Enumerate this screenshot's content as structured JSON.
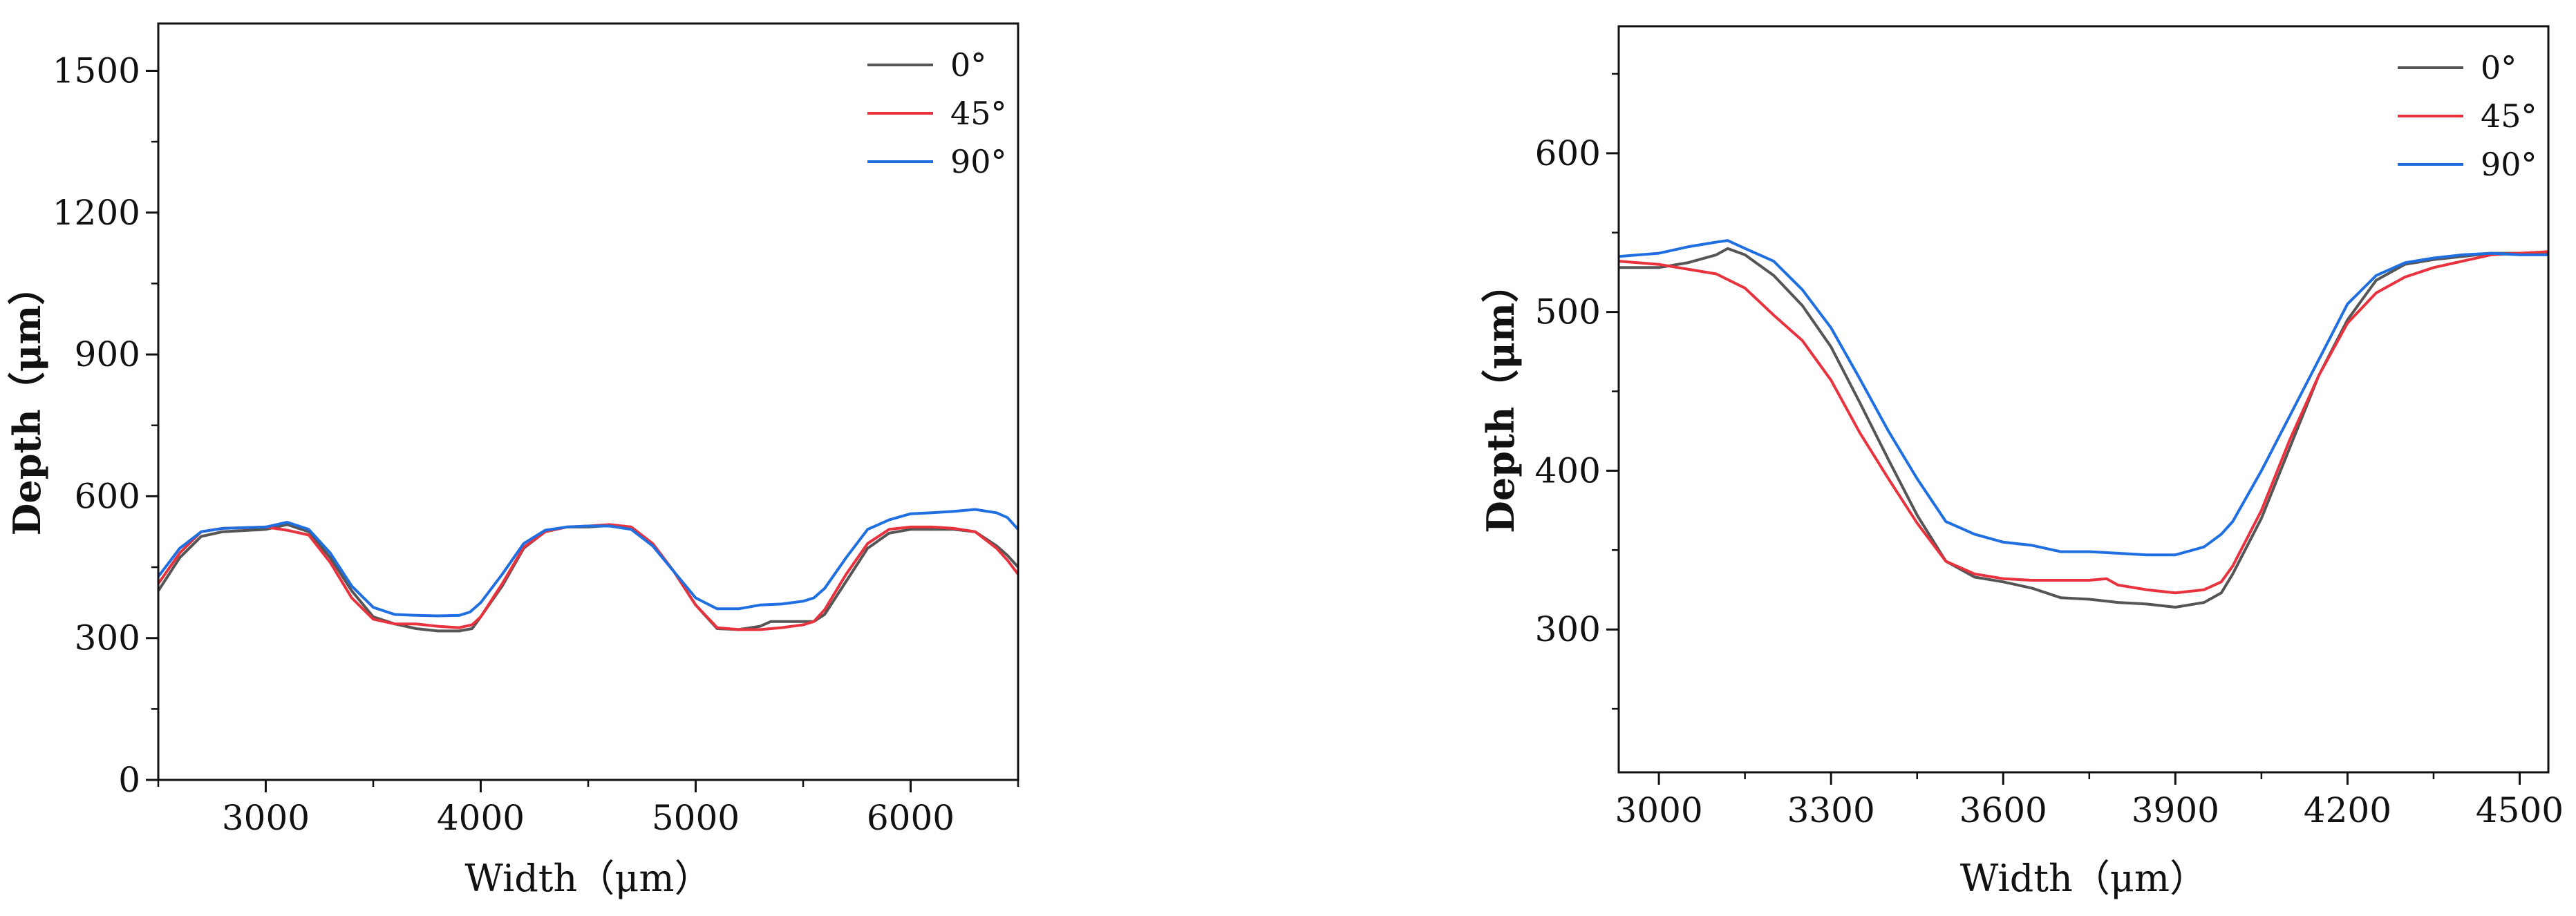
{
  "chart_data": [
    {
      "type": "line",
      "xlabel": "Width（μm）",
      "ylabel": "Depth（μm）",
      "xlim": [
        2500,
        6500
      ],
      "ylim": [
        0,
        1600
      ],
      "xticks": [
        3000,
        4000,
        5000,
        6000
      ],
      "yticks": [
        0,
        300,
        600,
        900,
        1200,
        1500
      ],
      "legend": {
        "position": "top-right",
        "entries": [
          "0°",
          "45°",
          "90°"
        ]
      },
      "series": [
        {
          "name": "0°",
          "color": "#555555",
          "points": [
            [
              2500,
              400
            ],
            [
              2600,
              470
            ],
            [
              2700,
              515
            ],
            [
              2800,
              525
            ],
            [
              3000,
              530
            ],
            [
              3100,
              540
            ],
            [
              3200,
              525
            ],
            [
              3300,
              470
            ],
            [
              3400,
              400
            ],
            [
              3500,
              345
            ],
            [
              3600,
              330
            ],
            [
              3700,
              320
            ],
            [
              3800,
              315
            ],
            [
              3900,
              315
            ],
            [
              3960,
              320
            ],
            [
              4000,
              345
            ],
            [
              4100,
              410
            ],
            [
              4200,
              490
            ],
            [
              4300,
              525
            ],
            [
              4400,
              535
            ],
            [
              4500,
              535
            ],
            [
              4600,
              538
            ],
            [
              4700,
              535
            ],
            [
              4800,
              500
            ],
            [
              4900,
              440
            ],
            [
              5000,
              370
            ],
            [
              5100,
              320
            ],
            [
              5200,
              318
            ],
            [
              5300,
              325
            ],
            [
              5350,
              335
            ],
            [
              5450,
              335
            ],
            [
              5550,
              335
            ],
            [
              5600,
              350
            ],
            [
              5700,
              420
            ],
            [
              5800,
              490
            ],
            [
              5900,
              522
            ],
            [
              6000,
              530
            ],
            [
              6100,
              530
            ],
            [
              6200,
              530
            ],
            [
              6300,
              525
            ],
            [
              6400,
              495
            ],
            [
              6450,
              475
            ],
            [
              6500,
              450
            ]
          ]
        },
        {
          "name": "45°",
          "color": "#e8333f",
          "points": [
            [
              2500,
              415
            ],
            [
              2600,
              480
            ],
            [
              2700,
              525
            ],
            [
              2800,
              532
            ],
            [
              3000,
              535
            ],
            [
              3100,
              528
            ],
            [
              3200,
              518
            ],
            [
              3300,
              460
            ],
            [
              3400,
              385
            ],
            [
              3500,
              340
            ],
            [
              3600,
              330
            ],
            [
              3700,
              330
            ],
            [
              3800,
              325
            ],
            [
              3900,
              322
            ],
            [
              3960,
              328
            ],
            [
              4000,
              345
            ],
            [
              4100,
              415
            ],
            [
              4200,
              492
            ],
            [
              4300,
              525
            ],
            [
              4400,
              535
            ],
            [
              4500,
              537
            ],
            [
              4600,
              540
            ],
            [
              4700,
              535
            ],
            [
              4800,
              500
            ],
            [
              4900,
              440
            ],
            [
              5000,
              370
            ],
            [
              5100,
              322
            ],
            [
              5200,
              318
            ],
            [
              5300,
              318
            ],
            [
              5400,
              322
            ],
            [
              5500,
              328
            ],
            [
              5550,
              335
            ],
            [
              5600,
              360
            ],
            [
              5700,
              435
            ],
            [
              5800,
              500
            ],
            [
              5900,
              530
            ],
            [
              6000,
              535
            ],
            [
              6100,
              535
            ],
            [
              6200,
              532
            ],
            [
              6300,
              525
            ],
            [
              6400,
              490
            ],
            [
              6450,
              465
            ],
            [
              6500,
              435
            ]
          ]
        },
        {
          "name": "90°",
          "color": "#1f6fe0",
          "points": [
            [
              2500,
              430
            ],
            [
              2600,
              490
            ],
            [
              2700,
              525
            ],
            [
              2800,
              532
            ],
            [
              3000,
              535
            ],
            [
              3100,
              545
            ],
            [
              3200,
              530
            ],
            [
              3300,
              480
            ],
            [
              3400,
              410
            ],
            [
              3500,
              365
            ],
            [
              3600,
              350
            ],
            [
              3700,
              348
            ],
            [
              3800,
              347
            ],
            [
              3900,
              348
            ],
            [
              3950,
              355
            ],
            [
              4000,
              375
            ],
            [
              4100,
              435
            ],
            [
              4200,
              500
            ],
            [
              4300,
              528
            ],
            [
              4400,
              535
            ],
            [
              4500,
              537
            ],
            [
              4600,
              537
            ],
            [
              4700,
              530
            ],
            [
              4800,
              495
            ],
            [
              4900,
              440
            ],
            [
              5000,
              385
            ],
            [
              5100,
              362
            ],
            [
              5200,
              362
            ],
            [
              5300,
              370
            ],
            [
              5400,
              372
            ],
            [
              5500,
              378
            ],
            [
              5550,
              385
            ],
            [
              5600,
              405
            ],
            [
              5700,
              470
            ],
            [
              5800,
              530
            ],
            [
              5900,
              550
            ],
            [
              6000,
              563
            ],
            [
              6100,
              565
            ],
            [
              6200,
              568
            ],
            [
              6300,
              572
            ],
            [
              6400,
              565
            ],
            [
              6450,
              555
            ],
            [
              6500,
              530
            ]
          ]
        }
      ]
    },
    {
      "type": "line",
      "xlabel": "Width（μm）",
      "ylabel": "Depth（μm）",
      "xlim": [
        2930,
        4550
      ],
      "ylim": [
        210,
        680
      ],
      "xticks": [
        3000,
        3300,
        3600,
        3900,
        4200,
        4500
      ],
      "yticks": [
        300,
        400,
        500,
        600
      ],
      "legend": {
        "position": "top-right",
        "entries": [
          "0°",
          "45°",
          "90°"
        ]
      },
      "series": [
        {
          "name": "0°",
          "color": "#555555",
          "points": [
            [
              2930,
              528
            ],
            [
              3000,
              528
            ],
            [
              3050,
              531
            ],
            [
              3100,
              536
            ],
            [
              3120,
              540
            ],
            [
              3150,
              536
            ],
            [
              3200,
              523
            ],
            [
              3250,
              504
            ],
            [
              3300,
              478
            ],
            [
              3350,
              443
            ],
            [
              3400,
              407
            ],
            [
              3450,
              372
            ],
            [
              3500,
              343
            ],
            [
              3550,
              333
            ],
            [
              3600,
              330
            ],
            [
              3650,
              326
            ],
            [
              3700,
              320
            ],
            [
              3750,
              319
            ],
            [
              3800,
              317
            ],
            [
              3850,
              316
            ],
            [
              3900,
              314
            ],
            [
              3950,
              317
            ],
            [
              3980,
              323
            ],
            [
              4000,
              335
            ],
            [
              4050,
              370
            ],
            [
              4100,
              415
            ],
            [
              4150,
              460
            ],
            [
              4200,
              495
            ],
            [
              4250,
              520
            ],
            [
              4300,
              530
            ],
            [
              4350,
              533
            ],
            [
              4400,
              535
            ],
            [
              4450,
              537
            ],
            [
              4500,
              537
            ],
            [
              4550,
              537
            ]
          ]
        },
        {
          "name": "45°",
          "color": "#e8333f",
          "points": [
            [
              2930,
              532
            ],
            [
              3000,
              530
            ],
            [
              3050,
              527
            ],
            [
              3100,
              524
            ],
            [
              3150,
              515
            ],
            [
              3200,
              498
            ],
            [
              3250,
              482
            ],
            [
              3300,
              457
            ],
            [
              3350,
              424
            ],
            [
              3400,
              395
            ],
            [
              3450,
              367
            ],
            [
              3500,
              343
            ],
            [
              3550,
              335
            ],
            [
              3600,
              332
            ],
            [
              3650,
              331
            ],
            [
              3700,
              331
            ],
            [
              3750,
              331
            ],
            [
              3780,
              332
            ],
            [
              3800,
              328
            ],
            [
              3850,
              325
            ],
            [
              3900,
              323
            ],
            [
              3950,
              325
            ],
            [
              3980,
              330
            ],
            [
              4000,
              340
            ],
            [
              4050,
              375
            ],
            [
              4100,
              420
            ],
            [
              4150,
              460
            ],
            [
              4200,
              493
            ],
            [
              4250,
              512
            ],
            [
              4300,
              522
            ],
            [
              4350,
              528
            ],
            [
              4400,
              532
            ],
            [
              4450,
              536
            ],
            [
              4500,
              537
            ],
            [
              4550,
              538
            ]
          ]
        },
        {
          "name": "90°",
          "color": "#1f6fe0",
          "points": [
            [
              2930,
              535
            ],
            [
              3000,
              537
            ],
            [
              3050,
              541
            ],
            [
              3100,
              544
            ],
            [
              3120,
              545
            ],
            [
              3150,
              540
            ],
            [
              3200,
              532
            ],
            [
              3250,
              514
            ],
            [
              3300,
              490
            ],
            [
              3350,
              458
            ],
            [
              3400,
              425
            ],
            [
              3450,
              395
            ],
            [
              3500,
              368
            ],
            [
              3550,
              360
            ],
            [
              3600,
              355
            ],
            [
              3650,
              353
            ],
            [
              3700,
              349
            ],
            [
              3750,
              349
            ],
            [
              3800,
              348
            ],
            [
              3850,
              347
            ],
            [
              3900,
              347
            ],
            [
              3950,
              352
            ],
            [
              3980,
              360
            ],
            [
              4000,
              368
            ],
            [
              4050,
              400
            ],
            [
              4100,
              435
            ],
            [
              4150,
              470
            ],
            [
              4200,
              505
            ],
            [
              4250,
              523
            ],
            [
              4300,
              531
            ],
            [
              4350,
              534
            ],
            [
              4400,
              536
            ],
            [
              4450,
              537
            ],
            [
              4500,
              536
            ],
            [
              4550,
              536
            ]
          ]
        }
      ]
    }
  ]
}
